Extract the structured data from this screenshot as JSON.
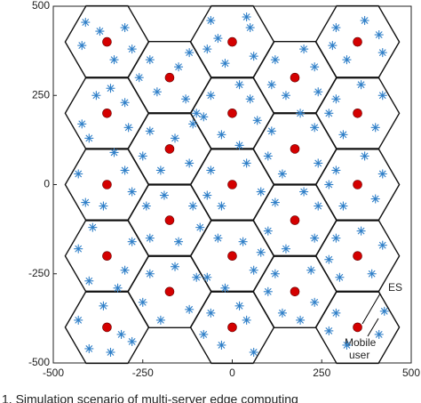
{
  "chart_data": {
    "type": "scatter",
    "xlim": [
      -500,
      500
    ],
    "ylim": [
      -500,
      500
    ],
    "xticks": [
      -500,
      -250,
      0,
      250,
      500
    ],
    "yticks": [
      -500,
      -250,
      0,
      250,
      500
    ],
    "caption": "1. Simulation scenario of multi-server edge computing",
    "annotations": [
      "ES",
      "Mobile",
      "user"
    ],
    "series": [
      {
        "marker": "asterisk",
        "color": "#2f7fc8",
        "x": [
          -410,
          -300,
          -420,
          -330,
          -280,
          -370,
          -420,
          -300,
          -380,
          -290,
          -400,
          -340,
          -430,
          -300,
          -360,
          -280,
          -410,
          -330,
          -430,
          -300,
          -390,
          -280,
          -400,
          -320,
          -430,
          -310,
          -360,
          -280,
          -400,
          -340,
          -230,
          -120,
          -210,
          -130,
          -260,
          -150,
          -100,
          -230,
          -120,
          -200,
          -250,
          -110,
          -160,
          -240,
          -110,
          -150,
          -230,
          -90,
          -190,
          -230,
          -120,
          -200,
          -100,
          -250,
          -160,
          -60,
          40,
          -40,
          60,
          -20,
          50,
          -70,
          -60,
          50,
          -30,
          70,
          -80,
          20,
          -60,
          40,
          -30,
          80,
          -70,
          20,
          -40,
          60,
          -70,
          30,
          -20,
          80,
          -60,
          40,
          -30,
          60,
          -80,
          20,
          120,
          230,
          150,
          240,
          110,
          200,
          110,
          240,
          140,
          230,
          100,
          190,
          120,
          230,
          150,
          240,
          100,
          200,
          120,
          230,
          140,
          220,
          100,
          190,
          290,
          410,
          320,
          420,
          280,
          370,
          290,
          420,
          310,
          400,
          270,
          360,
          290,
          420,
          310,
          400,
          270,
          370,
          290,
          420,
          300,
          390,
          270,
          360,
          290,
          410,
          320,
          270,
          425
        ],
        "y": [
          455,
          440,
          390,
          350,
          380,
          430,
          170,
          230,
          250,
          160,
          130,
          270,
          30,
          40,
          -60,
          -20,
          -50,
          90,
          -180,
          -240,
          -120,
          -160,
          -270,
          -290,
          -380,
          -420,
          -340,
          -440,
          -460,
          -470,
          350,
          370,
          260,
          240,
          300,
          330,
          200,
          150,
          60,
          40,
          80,
          170,
          130,
          -60,
          -60,
          -160,
          -150,
          -120,
          -30,
          -250,
          -350,
          -380,
          -260,
          -330,
          -230,
          460,
          470,
          410,
          360,
          340,
          440,
          380,
          250,
          240,
          140,
          180,
          190,
          280,
          40,
          60,
          -60,
          -20,
          -30,
          110,
          -150,
          -240,
          -260,
          -160,
          -290,
          -190,
          -360,
          -380,
          -450,
          -470,
          -420,
          -340,
          350,
          330,
          250,
          260,
          280,
          380,
          150,
          60,
          30,
          160,
          80,
          200,
          -50,
          -150,
          -180,
          -60,
          -130,
          -20,
          -250,
          -330,
          -360,
          -240,
          -300,
          -380,
          440,
          420,
          350,
          370,
          390,
          460,
          240,
          250,
          140,
          160,
          200,
          280,
          40,
          30,
          -60,
          -40,
          0,
          80,
          -150,
          -170,
          -260,
          -250,
          -210,
          -130,
          -360,
          -420,
          -450,
          -410,
          -355
        ]
      },
      {
        "marker": "circle",
        "color": "#d40000",
        "x": [
          -350,
          -350,
          -350,
          -350,
          -350,
          -175,
          -175,
          -175,
          -175,
          0,
          0,
          0,
          0,
          0,
          175,
          175,
          175,
          175,
          350,
          350,
          350,
          350,
          350
        ],
        "y": [
          400,
          200,
          0,
          -200,
          -400,
          300,
          100,
          -100,
          -300,
          400,
          200,
          0,
          -200,
          -400,
          300,
          100,
          -100,
          -300,
          400,
          200,
          0,
          -200,
          -400
        ]
      }
    ]
  }
}
